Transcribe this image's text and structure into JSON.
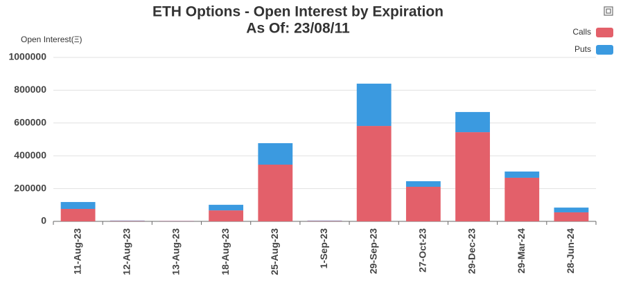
{
  "chart_data": {
    "type": "stacked_bar",
    "title": "ETH Options - Open Interest by Expiration",
    "subtitle": "As Of: 23/08/11",
    "y_label": "Open Interest(Ξ)",
    "categories": [
      "11-Aug-23",
      "12-Aug-23",
      "13-Aug-23",
      "18-Aug-23",
      "25-Aug-23",
      "1-Sep-23",
      "29-Sep-23",
      "27-Oct-23",
      "29-Dec-23",
      "29-Mar-24",
      "28-Jun-24"
    ],
    "series": [
      {
        "name": "Calls",
        "color": "#e3606a",
        "values": [
          76000,
          3000,
          2000,
          67000,
          346000,
          3000,
          582000,
          211000,
          544000,
          266000,
          55000
        ]
      },
      {
        "name": "Puts",
        "color": "#3b9ae0",
        "values": [
          42000,
          2000,
          1000,
          34000,
          131000,
          2000,
          258000,
          34000,
          123000,
          38000,
          29000
        ]
      }
    ],
    "ylim": [
      0,
      1000000
    ],
    "yticks": [
      0,
      200000,
      400000,
      600000,
      800000,
      1000000
    ],
    "grid": true
  }
}
